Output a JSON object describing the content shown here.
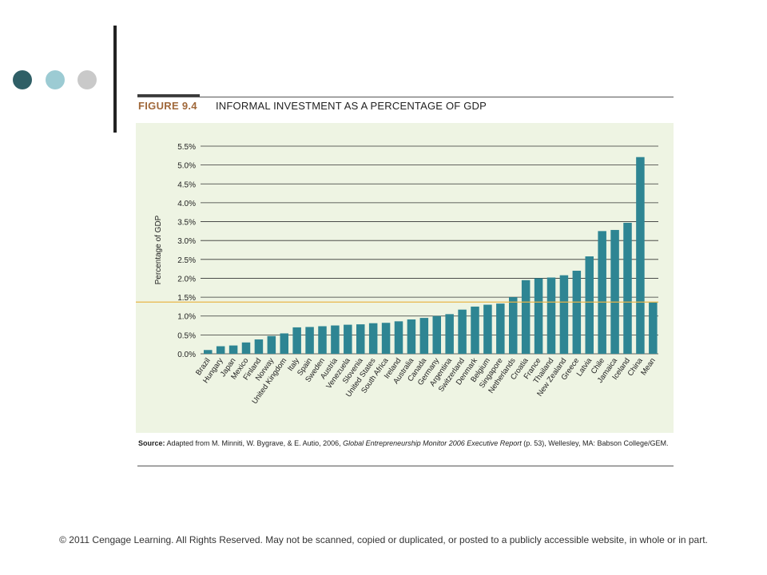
{
  "decor": {
    "dot_colors": [
      "#2f5f66",
      "#9ccbd3",
      "#c9c9c9"
    ],
    "bar_color": "#2e8593",
    "mean_line_color": "#e8b64a"
  },
  "figure": {
    "label": "FIGURE 9.4",
    "title": "INFORMAL INVESTMENT AS A PERCENTAGE OF GDP",
    "source_label": "Source:",
    "source_text_1": " Adapted from M. Minniti, W. Bygrave, & E. Autio, 2006, ",
    "source_italic": "Global Entrepreneurship Monitor 2006 Executive Report",
    "source_text_2": " (p. 53), Wellesley, MA: Babson College/GEM."
  },
  "footer": {
    "copyright": "© 2011 Cengage Learning. All Rights Reserved. May not be scanned, copied or duplicated, or posted to a publicly accessible website, in whole or in part."
  },
  "chart_data": {
    "type": "bar",
    "ylabel": "Percentage of GDP",
    "ylim": [
      0,
      5.5
    ],
    "yticks": [
      0,
      0.5,
      1.0,
      1.5,
      2.0,
      2.5,
      3.0,
      3.5,
      4.0,
      4.5,
      5.0,
      5.5
    ],
    "ytick_labels": [
      "0.0%",
      "0.5%",
      "1.0%",
      "1.5%",
      "2.0%",
      "2.5%",
      "3.0%",
      "3.5%",
      "4.0%",
      "4.5%",
      "5.0%",
      "5.5%"
    ],
    "grid": true,
    "mean_value": 1.37,
    "categories": [
      "Brazil",
      "Hungary",
      "Japan",
      "Mexico",
      "Finland",
      "Norway",
      "United Kingdom",
      "Italy",
      "Spain",
      "Sweden",
      "Austria",
      "Venezuela",
      "Slovenia",
      "United States",
      "South Africa",
      "Ireland",
      "Australia",
      "Canada",
      "Germany",
      "Argentina",
      "Switzerland",
      "Denmark",
      "Belgium",
      "Singapore",
      "Netherlands",
      "Croatia",
      "France",
      "Thailand",
      "New Zealand",
      "Greece",
      "Latvia",
      "Chile",
      "Jamaica",
      "Iceland",
      "China",
      "Mean"
    ],
    "values": [
      0.1,
      0.2,
      0.22,
      0.3,
      0.38,
      0.47,
      0.54,
      0.7,
      0.71,
      0.73,
      0.75,
      0.77,
      0.78,
      0.81,
      0.82,
      0.86,
      0.91,
      0.95,
      1.0,
      1.05,
      1.17,
      1.25,
      1.3,
      1.33,
      1.5,
      1.95,
      2.0,
      2.02,
      2.08,
      2.2,
      2.58,
      3.25,
      3.28,
      3.47,
      5.21,
      1.37
    ]
  }
}
